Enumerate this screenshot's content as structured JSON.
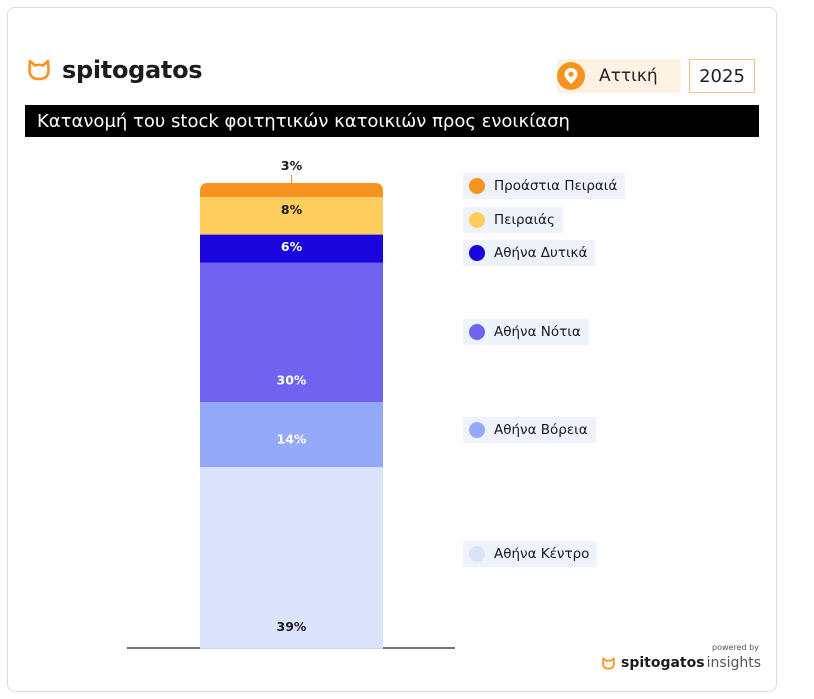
{
  "brand": {
    "name": "spitogatos",
    "icon": "cat-head-icon",
    "color": "#f7931e"
  },
  "header": {
    "region": "Αττική",
    "year": "2025",
    "region_icon": "location-pin-icon"
  },
  "title": "Κατανομή του stock φοιτητικών κατοικιών προς ενοικίαση",
  "chart_data": {
    "type": "bar",
    "stacked": true,
    "unit": "%",
    "categories": [
      ""
    ],
    "series": [
      {
        "name": "Αθήνα Κέντρο",
        "values": [
          39
        ],
        "label": "39%",
        "color": "#dbe3fb",
        "label_color": "#1a1a1a"
      },
      {
        "name": "Αθήνα Βόρεια",
        "values": [
          14
        ],
        "label": "14%",
        "color": "#95a9f9",
        "label_color": "#ffffff"
      },
      {
        "name": "Αθήνα Νότια",
        "values": [
          30
        ],
        "label": "30%",
        "color": "#7063f0",
        "label_color": "#ffffff"
      },
      {
        "name": "Αθήνα Δυτικά",
        "values": [
          6
        ],
        "label": "6%",
        "color": "#1a05dd",
        "label_color": "#ffffff"
      },
      {
        "name": "Πειραιάς",
        "values": [
          8
        ],
        "label": "8%",
        "color": "#fecd5e",
        "label_color": "#1a1a1a"
      },
      {
        "name": "Προάστια Πειραιά",
        "values": [
          3
        ],
        "label": "3%",
        "color": "#f7931e",
        "label_color": "#1a1a1a"
      }
    ],
    "legend_order": [
      "Προάστια Πειραιά",
      "Πειραιάς",
      "Αθήνα Δυτικά",
      "Αθήνα Νότια",
      "Αθήνα Βόρεια",
      "Αθήνα Κέντρο"
    ],
    "ylim": [
      0,
      100
    ],
    "grid": false,
    "legend_position": "right"
  },
  "footer": {
    "powered_by": "powered by",
    "brand_bold": "spitogatos",
    "brand_light": "insights"
  }
}
